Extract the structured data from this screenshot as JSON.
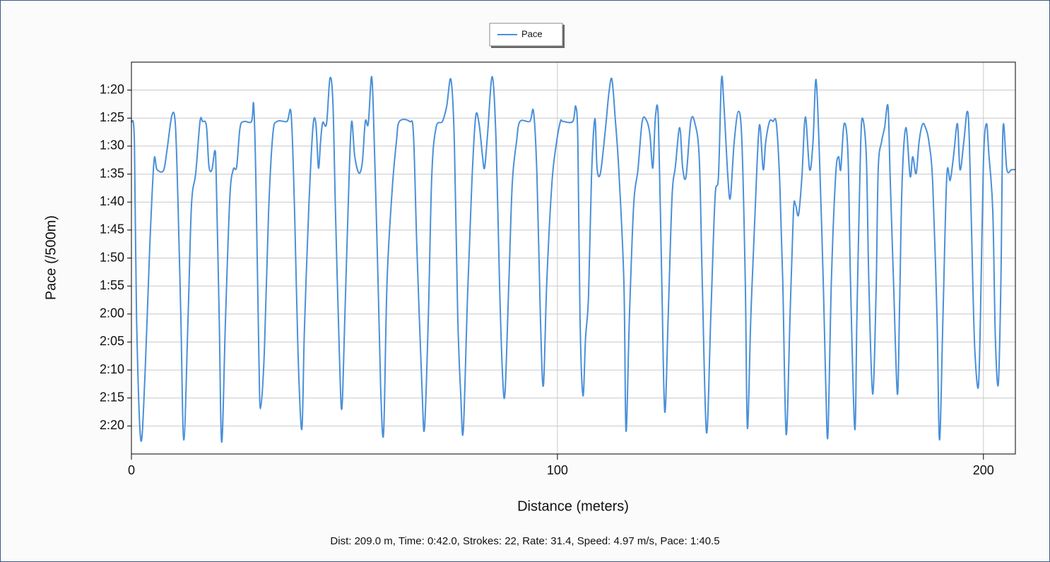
{
  "chart_data": {
    "type": "line",
    "y_label": "Pace (/500m)",
    "x_label": "Distance (meters)",
    "footer": "Dist: 209.0 m, Time: 0:42.0, Strokes: 22, Rate: 31.4, Speed: 4.97 m/s, Pace: 1:40.5",
    "grid": true,
    "legend": "top",
    "xlim": [
      0,
      207.5
    ],
    "xticks": [
      0,
      100,
      200
    ],
    "ylim": [
      145,
      75
    ],
    "yticks": [
      {
        "value": 80,
        "label": "1:20"
      },
      {
        "value": 85,
        "label": "1:25"
      },
      {
        "value": 90,
        "label": "1:30"
      },
      {
        "value": 95,
        "label": "1:35"
      },
      {
        "value": 100,
        "label": "1:40"
      },
      {
        "value": 105,
        "label": "1:45"
      },
      {
        "value": 110,
        "label": "1:50"
      },
      {
        "value": 115,
        "label": "1:55"
      },
      {
        "value": 120,
        "label": "2:00"
      },
      {
        "value": 125,
        "label": "2:05"
      },
      {
        "value": 130,
        "label": "2:10"
      },
      {
        "value": 135,
        "label": "2:15"
      },
      {
        "value": 140,
        "label": "2:20"
      }
    ],
    "x": [
      0,
      0.7,
      1.2,
      2.2,
      3.2,
      4.3,
      5.3,
      6.0,
      7.5,
      8.3,
      9.5,
      10.3,
      10.9,
      11.6,
      12.3,
      13.3,
      14.1,
      15.1,
      16.1,
      16.7,
      17.6,
      18.2,
      18.9,
      19.6,
      19.9,
      20.6,
      21.2,
      22.1,
      23.1,
      23.9,
      24.7,
      25.5,
      26.5,
      28.2,
      28.7,
      29.2,
      29.9,
      30.3,
      31.2,
      32.2,
      33.2,
      34.2,
      36.5,
      37.5,
      38.3,
      39.1,
      40.0,
      40.6,
      41.6,
      42.6,
      43.3,
      43.9,
      44.4,
      44.9,
      45.8,
      46.6,
      47.3,
      47.9,
      48.8,
      49.4,
      50.1,
      51.1,
      51.7,
      52.4,
      53.4,
      54.2,
      54.9,
      55.6,
      56.4,
      57.0,
      57.9,
      58.5,
      59.2,
      60.0,
      61.2,
      62.2,
      62.9,
      65.3,
      66.2,
      67.0,
      68.2,
      68.8,
      69.7,
      70.5,
      71.5,
      73.0,
      74.0,
      75.0,
      75.8,
      76.6,
      77.3,
      77.9,
      78.9,
      79.9,
      80.8,
      81.6,
      82.4,
      82.9,
      83.6,
      84.7,
      85.6,
      86.4,
      87.1,
      87.7,
      88.6,
      89.4,
      90.4,
      91.2,
      93.5,
      94.4,
      95.2,
      96.0,
      96.7,
      97.5,
      98.7,
      99.7,
      100.7,
      101.3,
      103.6,
      104.3,
      104.8,
      105.3,
      106.0,
      106.6,
      107.3,
      108.0,
      108.8,
      109.3,
      110.1,
      111.3,
      112.1,
      112.8,
      113.6,
      114.4,
      115.6,
      116.1,
      116.9,
      117.9,
      118.9,
      119.9,
      120.9,
      121.7,
      122.4,
      123.0,
      123.7,
      124.5,
      125.2,
      126.0,
      126.9,
      127.7,
      128.7,
      129.4,
      130.2,
      131.3,
      132.3,
      133.3,
      134.0,
      135.0,
      136.0,
      137.0,
      137.8,
      138.5,
      139.1,
      140.0,
      140.6,
      141.5,
      142.5,
      143.3,
      144.1,
      144.6,
      145.4,
      146.4,
      147.4,
      148.3,
      148.9,
      149.8,
      150.6,
      151.4,
      152.2,
      152.9,
      153.7,
      154.6,
      155.4,
      155.9,
      156.6,
      157.4,
      158.2,
      159.2,
      160.0,
      160.7,
      161.5,
      162.4,
      163.0,
      163.5,
      164.3,
      165.3,
      166.0,
      166.5,
      167.3,
      168.2,
      168.8,
      169.8,
      170.3,
      171.0,
      171.5,
      172.5,
      173.1,
      174.0,
      174.8,
      175.3,
      176.1,
      176.8,
      177.6,
      178.1,
      178.9,
      179.8,
      180.3,
      180.9,
      181.8,
      182.8,
      183.4,
      184.2,
      184.9,
      185.7,
      186.4,
      187.2,
      188.1,
      189.1,
      189.7,
      190.5,
      191.4,
      192.2,
      193.0,
      193.9,
      194.5,
      195.4,
      196.2,
      196.7,
      197.5,
      198.0,
      198.8,
      199.3,
      200.0,
      200.7,
      201.3,
      202.2,
      202.8,
      203.5,
      204.1,
      204.6,
      205.5,
      206.6,
      207.5
    ],
    "series": [
      {
        "name": "Pace",
        "color": "#4a90d9",
        "values": [
          85.6,
          89.2,
          120.5,
          142.5,
          130.6,
          108.0,
          92.7,
          94.2,
          94.4,
          91.0,
          84.5,
          86.0,
          99.2,
          120.5,
          142.5,
          120.5,
          100.5,
          94.8,
          85.6,
          85.6,
          86.4,
          93.6,
          94.2,
          90.8,
          95.4,
          120.5,
          142.9,
          120.5,
          99.2,
          94.2,
          93.7,
          86.7,
          85.6,
          85.6,
          82.6,
          95.4,
          126.8,
          136.9,
          126.8,
          101.7,
          87.9,
          85.6,
          85.6,
          84.4,
          101.7,
          126.8,
          140.6,
          123.0,
          101.7,
          86.7,
          86.0,
          93.9,
          89.2,
          85.8,
          86.0,
          77.9,
          82.3,
          101.7,
          126.8,
          136.9,
          120.5,
          95.4,
          85.6,
          91.7,
          94.8,
          92.9,
          85.6,
          86.0,
          77.6,
          89.2,
          114.3,
          133.1,
          141.2,
          114.3,
          97.9,
          89.2,
          85.6,
          85.6,
          87.9,
          108.0,
          133.1,
          140.4,
          120.5,
          95.4,
          86.7,
          85.6,
          82.9,
          78.1,
          89.2,
          120.5,
          134.3,
          140.9,
          116.8,
          96.7,
          84.8,
          86.0,
          91.7,
          93.9,
          87.9,
          77.6,
          89.2,
          114.3,
          130.6,
          134.0,
          114.3,
          96.7,
          89.2,
          85.6,
          85.6,
          83.9,
          95.4,
          120.5,
          132.8,
          114.3,
          96.7,
          89.8,
          85.6,
          85.6,
          85.6,
          82.9,
          89.2,
          120.5,
          134.6,
          124.3,
          116.8,
          95.4,
          85.1,
          93.9,
          94.8,
          86.7,
          80.4,
          78.1,
          85.4,
          94.2,
          114.3,
          140.9,
          120.5,
          100.5,
          94.2,
          85.6,
          85.4,
          87.9,
          93.9,
          84.8,
          85.4,
          114.3,
          137.5,
          120.5,
          99.2,
          93.6,
          86.7,
          93.9,
          95.4,
          85.6,
          86.0,
          92.3,
          114.3,
          141.2,
          120.5,
          99.2,
          95.4,
          78.1,
          82.9,
          95.4,
          99.2,
          89.2,
          83.8,
          89.2,
          114.3,
          140.4,
          120.5,
          101.7,
          86.3,
          94.2,
          89.2,
          85.6,
          85.6,
          86.0,
          96.7,
          114.3,
          141.5,
          120.5,
          101.7,
          100.5,
          102.3,
          95.4,
          84.8,
          94.2,
          89.2,
          78.1,
          91.7,
          114.3,
          133.1,
          141.5,
          114.3,
          95.4,
          91.9,
          94.2,
          86.0,
          91.4,
          114.3,
          140.6,
          120.5,
          95.4,
          85.1,
          91.7,
          114.3,
          134.3,
          116.1,
          94.2,
          89.2,
          86.7,
          82.9,
          95.4,
          114.3,
          134.3,
          119.3,
          96.7,
          86.7,
          95.4,
          91.9,
          94.9,
          89.2,
          86.1,
          86.7,
          89.2,
          96.7,
          120.5,
          142.5,
          120.5,
          95.4,
          96.1,
          91.7,
          86.0,
          94.2,
          89.2,
          83.8,
          89.2,
          114.3,
          126.8,
          133.1,
          120.5,
          92.9,
          86.0,
          91.7,
          101.7,
          124.3,
          132.5,
          114.3,
          86.7,
          94.2,
          94.2,
          94.2
        ]
      }
    ]
  }
}
